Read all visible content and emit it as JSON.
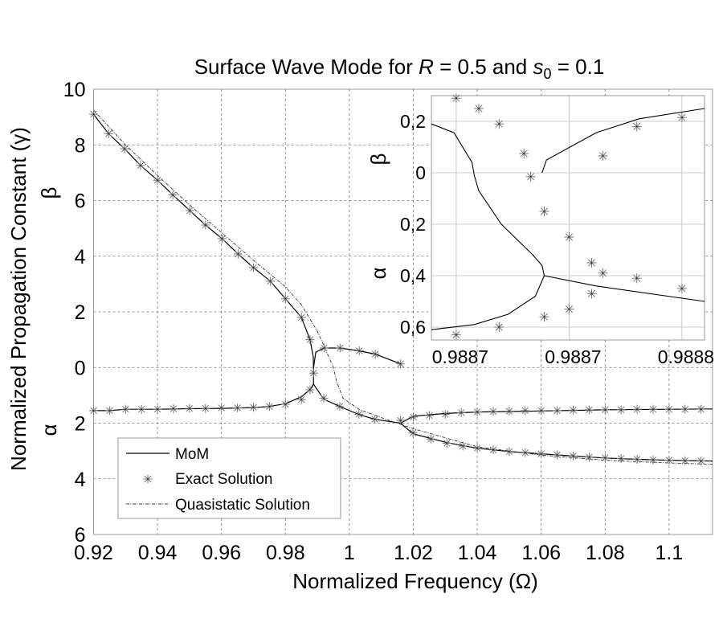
{
  "chart_data": {
    "type": "line",
    "title": {
      "prefix": "Surface Wave Mode for ",
      "var1": "R",
      "eq1": " = 0.5 and ",
      "var2": "s",
      "sub2": "0",
      "eq2": " = 0.1"
    },
    "xlabel": "Normalized Frequency (Ω)",
    "ylabel": "Normalized Propagation Constant (γ)",
    "ylabel_upper": "β",
    "ylabel_lower": "α",
    "xlim": [
      0.92,
      1.1136
    ],
    "ylim": [
      -6,
      10
    ],
    "sign_convention": "β plotted upward (positive), α plotted downward (negative)",
    "grid": true,
    "x_ticks": [
      0.92,
      0.94,
      0.96,
      0.98,
      1.0,
      1.02,
      1.04,
      1.06,
      1.08,
      1.1
    ],
    "x_tick_labels": [
      "0.92",
      "0.94",
      "0.96",
      "0.98",
      "1",
      "1.02",
      "1.04",
      "1.06",
      "1.08",
      "1.1"
    ],
    "y_ticks": [
      10,
      8,
      6,
      4,
      2,
      0,
      -2,
      -4,
      -6
    ],
    "y_tick_labels": [
      "10",
      "8",
      "6",
      "4",
      "2",
      "0",
      "2",
      "4",
      "6"
    ],
    "legend": {
      "placement": "bottom-left",
      "entries": [
        "MoM",
        "Exact Solution",
        "Quasistatic Solution"
      ]
    },
    "series": [
      {
        "name": "MoM (β branch)",
        "style": "solid",
        "x": [
          0.92,
          0.9247,
          0.9297,
          0.9347,
          0.94,
          0.9448,
          0.9501,
          0.955,
          0.9602,
          0.9652,
          0.97,
          0.9753,
          0.98,
          0.985,
          0.9877,
          0.9887,
          0.9888,
          0.9888
        ],
        "y": [
          9.1,
          8.4,
          7.86,
          7.26,
          6.73,
          6.2,
          5.64,
          5.12,
          4.63,
          4.08,
          3.59,
          3.1,
          2.47,
          1.8,
          1.0,
          0.4,
          0.0,
          -0.6
        ]
      },
      {
        "name": "MoM (β upper branch)",
        "style": "solid",
        "x": [
          0.9888,
          0.9895,
          0.9921,
          0.9971,
          1.0031,
          1.0081,
          1.016
        ],
        "y": [
          0.0,
          0.55,
          0.7,
          0.7,
          0.6,
          0.48,
          0.13
        ]
      },
      {
        "name": "MoM (α left branch)",
        "style": "solid",
        "x": [
          0.92,
          0.925,
          0.93,
          0.94,
          0.95,
          0.96,
          0.97,
          0.975,
          0.98,
          0.985,
          0.9877,
          0.9888
        ],
        "y": [
          -1.55,
          -1.55,
          -1.5,
          -1.5,
          -1.48,
          -1.47,
          -1.44,
          -1.4,
          -1.3,
          -1.05,
          -0.8,
          -0.6
        ]
      },
      {
        "name": "MoM (α lower branch)",
        "style": "solid",
        "x": [
          0.9888,
          0.992,
          0.997,
          1.003,
          1.008,
          1.016,
          1.0199,
          1.0255,
          1.0305,
          1.04,
          1.05,
          1.06,
          1.07,
          1.08,
          1.09,
          1.1,
          1.1136
        ],
        "y": [
          -0.6,
          -1.14,
          -1.4,
          -1.69,
          -1.86,
          -2.0,
          -2.38,
          -2.55,
          -2.7,
          -2.9,
          -3.02,
          -3.1,
          -3.18,
          -3.25,
          -3.3,
          -3.33,
          -3.36
        ]
      },
      {
        "name": "MoM (α upper branch)",
        "style": "solid",
        "x": [
          1.016,
          1.02,
          1.025,
          1.03,
          1.04,
          1.05,
          1.06,
          1.08,
          1.1,
          1.1136
        ],
        "y": [
          -2.0,
          -1.75,
          -1.7,
          -1.65,
          -1.6,
          -1.58,
          -1.56,
          -1.52,
          -1.5,
          -1.49
        ]
      },
      {
        "name": "Quasistatic Solution",
        "style": "dashdot",
        "x": [
          0.92,
          0.93,
          0.94,
          0.95,
          0.96,
          0.97,
          0.98,
          0.985,
          0.99,
          0.9935,
          0.995,
          0.996,
          0.998,
          1.003,
          1.01,
          1.02,
          1.04,
          1.06,
          1.08,
          1.1,
          1.1136
        ],
        "y": [
          9.25,
          8.0,
          6.9,
          5.85,
          4.85,
          3.85,
          2.9,
          2.25,
          1.3,
          0.4,
          0.0,
          -0.5,
          -1.1,
          -1.5,
          -1.8,
          -2.2,
          -2.85,
          -3.15,
          -3.33,
          -3.43,
          -3.48
        ]
      },
      {
        "name": "Exact Solution",
        "style": "marker-star",
        "x": [
          0.92,
          0.9247,
          0.9297,
          0.9347,
          0.94,
          0.9448,
          0.9501,
          0.955,
          0.9602,
          0.9652,
          0.97,
          0.9753,
          0.98,
          0.985,
          0.9877,
          0.9888,
          0.9921,
          0.9971,
          1.0031,
          1.0081,
          1.016,
          0.92,
          0.925,
          0.93,
          0.935,
          0.94,
          0.945,
          0.95,
          0.955,
          0.96,
          0.965,
          0.97,
          0.975,
          0.98,
          0.985,
          0.9877,
          0.992,
          0.997,
          1.003,
          1.008,
          1.016,
          1.0199,
          1.0255,
          1.0305,
          1.0355,
          1.04,
          1.045,
          1.05,
          1.055,
          1.06,
          1.065,
          1.07,
          1.075,
          1.08,
          1.085,
          1.09,
          1.095,
          1.1,
          1.105,
          1.11,
          1.02,
          1.025,
          1.03,
          1.035,
          1.04,
          1.045,
          1.05,
          1.055,
          1.06,
          1.065,
          1.07,
          1.075,
          1.08,
          1.085,
          1.09,
          1.095,
          1.1,
          1.105,
          1.11
        ],
        "y": [
          9.1,
          8.4,
          7.86,
          7.26,
          6.73,
          6.2,
          5.64,
          5.12,
          4.63,
          4.08,
          3.59,
          3.1,
          2.47,
          1.8,
          1.0,
          -0.2,
          0.7,
          0.7,
          0.6,
          0.48,
          0.13,
          -1.55,
          -1.55,
          -1.5,
          -1.5,
          -1.5,
          -1.48,
          -1.47,
          -1.47,
          -1.45,
          -1.45,
          -1.43,
          -1.4,
          -1.32,
          -1.15,
          -0.8,
          -1.1,
          -1.4,
          -1.68,
          -1.86,
          -1.9,
          -2.35,
          -2.57,
          -2.72,
          -2.82,
          -2.9,
          -2.96,
          -3.02,
          -3.06,
          -3.1,
          -3.14,
          -3.18,
          -3.22,
          -3.25,
          -3.27,
          -3.3,
          -3.32,
          -3.33,
          -3.35,
          -3.36,
          -1.78,
          -1.72,
          -1.68,
          -1.62,
          -1.6,
          -1.58,
          -1.57,
          -1.55,
          -1.55,
          -1.55,
          -1.53,
          -1.52,
          -1.52,
          -1.52,
          -1.5,
          -1.5,
          -1.5,
          -1.5,
          -1.5
        ]
      }
    ],
    "inset": {
      "xlim": [
        0.988669,
        0.98879
      ],
      "ylim": [
        -0.65,
        0.3
      ],
      "x_ticks": [
        0.98868,
        0.98873,
        0.98878
      ],
      "x_tick_labels": [
        "0.9887",
        "0.9887",
        "0.9888"
      ],
      "y_ticks": [
        0.2,
        0,
        -0.2,
        -0.4,
        -0.6
      ],
      "y_tick_labels": [
        "0,2",
        "0",
        "0,2",
        "0,4",
        "0,6"
      ],
      "ylabel_upper": "β",
      "ylabel_lower": "α",
      "grid": true,
      "series": [
        {
          "name": "MoM (left curve)",
          "style": "solid",
          "x": [
            0.988669,
            0.988679,
            0.988687,
            0.988688,
            0.98869,
            0.9887,
            0.988714,
            0.988718,
            0.988719
          ],
          "y": [
            0.19,
            0.156,
            0.04,
            -0.01,
            -0.07,
            -0.2,
            -0.32,
            -0.36,
            -0.4
          ]
        },
        {
          "name": "MoM (lower-left curve)",
          "style": "solid",
          "x": [
            0.988719,
            0.988715,
            0.988703,
            0.988688,
            0.988669
          ],
          "y": [
            -0.4,
            -0.48,
            -0.55,
            -0.59,
            -0.61
          ]
        },
        {
          "name": "MoM (lower-right curve)",
          "style": "solid",
          "x": [
            0.988719,
            0.988742,
            0.98879
          ],
          "y": [
            -0.4,
            -0.44,
            -0.5
          ]
        },
        {
          "name": "MoM (β right curve)",
          "style": "solid",
          "x": [
            0.988718,
            0.98872,
            0.988742,
            0.988761,
            0.98879
          ],
          "y": [
            0.0,
            0.05,
            0.156,
            0.21,
            0.25
          ]
        },
        {
          "name": "Exact Solution",
          "style": "marker-star",
          "x": [
            0.98868,
            0.98869,
            0.988699,
            0.98871,
            0.988713,
            0.988719,
            0.98873,
            0.98874,
            0.988745,
            0.98876,
            0.98878,
            0.98868,
            0.988699,
            0.988719,
            0.98873,
            0.98874,
            0.988745,
            0.98876,
            0.98878
          ],
          "y": [
            0.29,
            0.25,
            0.19,
            0.075,
            -0.015,
            -0.15,
            -0.25,
            -0.35,
            -0.39,
            -0.41,
            -0.45,
            -0.63,
            -0.6,
            -0.56,
            -0.53,
            -0.47,
            0.066,
            0.18,
            0.215
          ]
        }
      ]
    }
  }
}
